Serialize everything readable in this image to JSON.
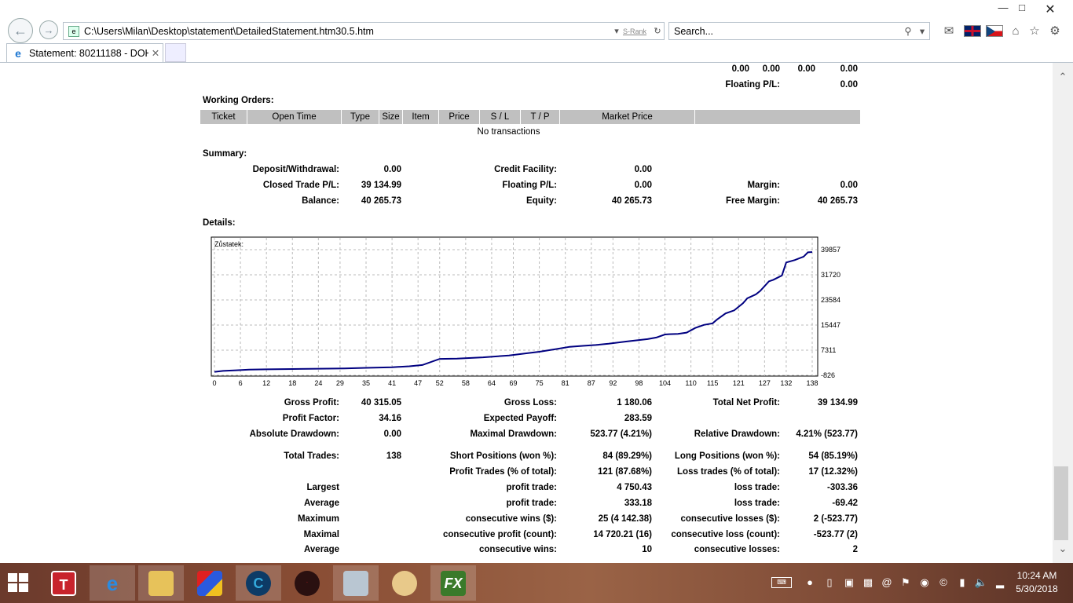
{
  "browser": {
    "address": "C:\\Users\\Milan\\Desktop\\statement\\DetailedStatement.htm30.5.htm",
    "rank_label": "S-Rank",
    "search_placeholder": "Search...",
    "tab_title": "Statement: 80211188 - DOH...",
    "icons": [
      "back-icon",
      "forward-icon",
      "refresh-icon",
      "search-icon",
      "mail-icon",
      "flag-uk-icon",
      "flag-cz-icon",
      "home-icon",
      "favorites-star-icon",
      "settings-gear-icon"
    ]
  },
  "top_values": {
    "row1": [
      "0.00",
      "0.00",
      "0.00",
      "0.00"
    ],
    "floating_label": "Floating P/L:",
    "floating_value": "0.00"
  },
  "working_orders": {
    "title": "Working Orders:",
    "columns": [
      "Ticket",
      "Open Time",
      "Type",
      "Size",
      "Item",
      "Price",
      "S / L",
      "T / P",
      "Market Price",
      ""
    ],
    "empty_text": "No transactions"
  },
  "summary": {
    "title": "Summary:",
    "deposit_label": "Deposit/Withdrawal:",
    "deposit_value": "0.00",
    "credit_label": "Credit Facility:",
    "credit_value": "0.00",
    "closed_label": "Closed Trade P/L:",
    "closed_value": "39 134.99",
    "floating_label": "Floating P/L:",
    "floating_value": "0.00",
    "margin_label": "Margin:",
    "margin_value": "0.00",
    "balance_label": "Balance:",
    "balance_value": "40 265.73",
    "equity_label": "Equity:",
    "equity_value": "40 265.73",
    "free_margin_label": "Free Margin:",
    "free_margin_value": "40 265.73"
  },
  "details": {
    "title": "Details:"
  },
  "chart_data": {
    "type": "line",
    "title": "Zůstatek:",
    "xlabel": "",
    "ylabel": "",
    "x_ticks": [
      "0",
      "6",
      "12",
      "18",
      "24",
      "29",
      "35",
      "41",
      "47",
      "52",
      "58",
      "64",
      "69",
      "75",
      "81",
      "87",
      "92",
      "98",
      "104",
      "110",
      "115",
      "121",
      "127",
      "132",
      "138"
    ],
    "y_ticks": [
      "39857",
      "31720",
      "23584",
      "15447",
      "7311",
      "-826"
    ],
    "ylim": [
      -826,
      39857
    ],
    "grid": true,
    "series": [
      {
        "x": [
          0,
          2,
          5,
          8,
          12,
          18,
          24,
          30,
          35,
          41,
          45,
          48,
          52,
          56,
          62,
          68,
          72,
          75,
          79,
          82,
          85,
          88,
          91,
          95,
          100,
          102,
          104,
          105,
          107,
          109,
          111,
          113,
          115,
          116,
          118,
          120,
          122,
          123,
          125,
          126,
          128,
          129,
          131,
          132,
          134,
          136,
          137,
          138
        ],
        "values": [
          300,
          600,
          800,
          1000,
          1100,
          1200,
          1300,
          1400,
          1600,
          1800,
          2100,
          2500,
          4500,
          4600,
          5000,
          5600,
          6300,
          6800,
          7700,
          8400,
          8700,
          9000,
          9400,
          10100,
          10900,
          11400,
          12400,
          12500,
          12600,
          13000,
          14500,
          15500,
          16000,
          17200,
          19200,
          20200,
          22500,
          24100,
          25400,
          26500,
          29600,
          30100,
          31500,
          35700,
          36500,
          37600,
          39000,
          39100
        ]
      }
    ]
  },
  "stats": {
    "gross_profit_label": "Gross Profit:",
    "gross_profit_value": "40 315.05",
    "gross_loss_label": "Gross Loss:",
    "gross_loss_value": "1 180.06",
    "total_net_profit_label": "Total Net Profit:",
    "total_net_profit_value": "39 134.99",
    "profit_factor_label": "Profit Factor:",
    "profit_factor_value": "34.16",
    "expected_payoff_label": "Expected Payoff:",
    "expected_payoff_value": "283.59",
    "abs_drawdown_label": "Absolute Drawdown:",
    "abs_drawdown_value": "0.00",
    "max_drawdown_label": "Maximal Drawdown:",
    "max_drawdown_value": "523.77 (4.21%)",
    "rel_drawdown_label": "Relative Drawdown:",
    "rel_drawdown_value": "4.21% (523.77)",
    "total_trades_label": "Total Trades:",
    "total_trades_value": "138",
    "short_label": "Short Positions (won %):",
    "short_value": "84 (89.29%)",
    "long_label": "Long Positions (won %):",
    "long_value": "54 (85.19%)",
    "profit_trades_label": "Profit Trades (% of total):",
    "profit_trades_value": "121 (87.68%)",
    "loss_trades_label": "Loss trades (% of total):",
    "loss_trades_value": "17 (12.32%)",
    "largest_label": "Largest",
    "largest_profit_label": "profit trade:",
    "largest_profit_value": "4 750.43",
    "largest_loss_label": "loss trade:",
    "largest_loss_value": "-303.36",
    "average_label": "Average",
    "avg_profit_label": "profit trade:",
    "avg_profit_value": "333.18",
    "avg_loss_label": "loss trade:",
    "avg_loss_value": "-69.42",
    "maximum_label": "Maximum",
    "max_cons_wins_label": "consecutive wins ($):",
    "max_cons_wins_value": "25 (4 142.38)",
    "max_cons_losses_label": "consecutive losses ($):",
    "max_cons_losses_value": "2 (-523.77)",
    "maximal_label": "Maximal",
    "maximal_cons_profit_label": "consecutive profit (count):",
    "maximal_cons_profit_value": "14 720.21 (16)",
    "maximal_cons_loss_label": "consecutive loss (count):",
    "maximal_cons_loss_value": "-523.77 (2)",
    "average2_label": "Average",
    "avg_cons_wins_label": "consecutive wins:",
    "avg_cons_wins_value": "10",
    "avg_cons_losses_label": "consecutive losses:",
    "avg_cons_losses_value": "2"
  },
  "taskbar": {
    "apps": [
      "T",
      "e",
      "folder",
      "cube",
      "C",
      "gear",
      "monitor",
      "palette",
      "FX"
    ],
    "time": "10:24 AM",
    "date": "5/30/2018"
  }
}
